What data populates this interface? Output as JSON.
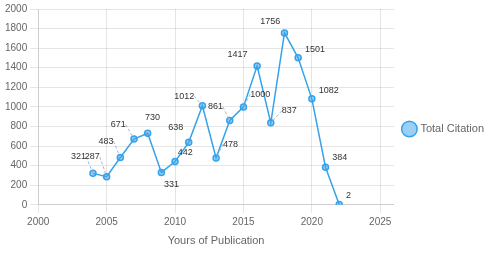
{
  "chart_data": {
    "type": "line",
    "xlabel": "Yours of Publication",
    "x": [
      2004,
      2005,
      2006,
      2007,
      2008,
      2009,
      2010,
      2011,
      2012,
      2013,
      2014,
      2015,
      2016,
      2017,
      2018,
      2019,
      2020,
      2021,
      2022
    ],
    "series": [
      {
        "name": "Total Citation",
        "marker": "circle",
        "values": [
          321,
          287,
          483,
          671,
          730,
          331,
          442,
          638,
          1012,
          478,
          861,
          1000,
          1417,
          837,
          1756,
          1501,
          1082,
          384,
          2
        ]
      }
    ],
    "xlim": [
      2000,
      2026
    ],
    "ylim": [
      0,
      2000
    ],
    "xticks": [
      2000,
      2005,
      2010,
      2015,
      2020,
      2025
    ],
    "yticks": [
      0,
      200,
      400,
      600,
      800,
      1000,
      1200,
      1400,
      1600,
      1800,
      2000
    ],
    "grid": true,
    "legend": "right",
    "data_labels": true
  }
}
